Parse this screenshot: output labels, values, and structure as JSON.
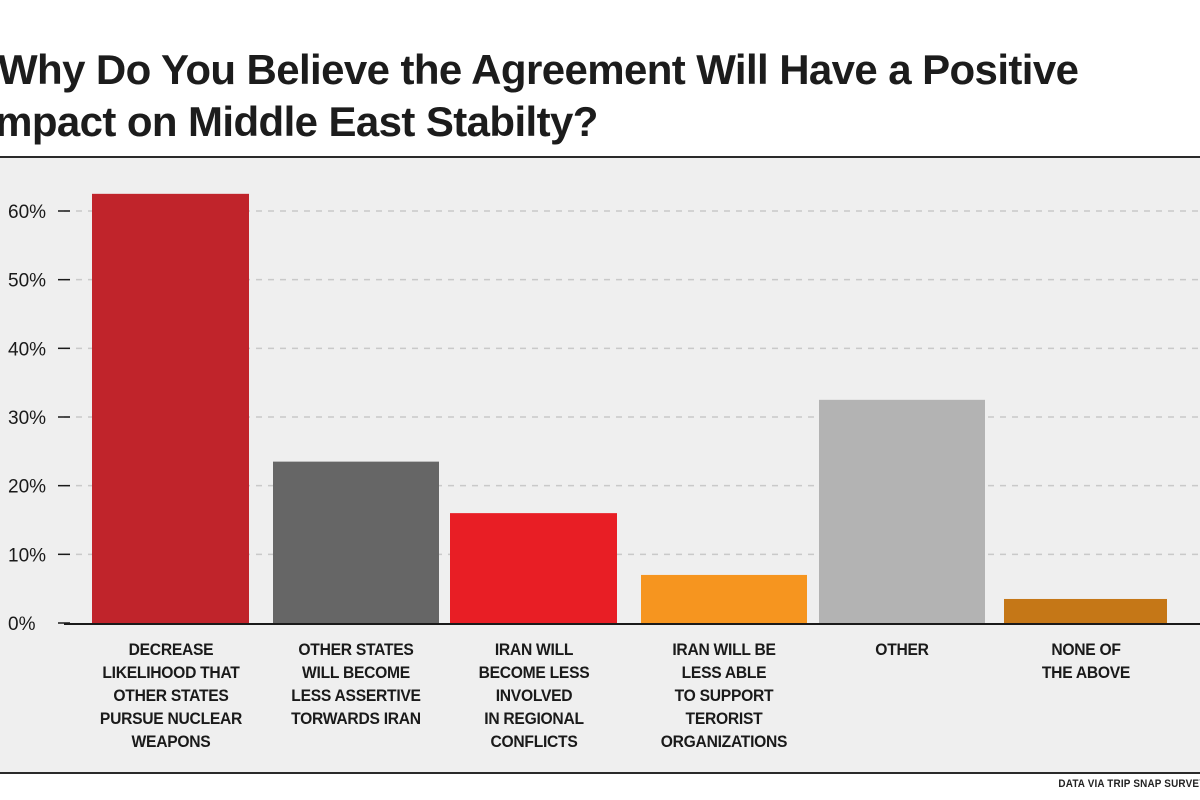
{
  "chart_data": {
    "type": "bar",
    "title_lines": [
      "Why Do You Believe the Agreement Will Have a Positive",
      "Impact on Middle East Stabilty?"
    ],
    "categories": [
      "DECREASE\nLIKELIHOOD THAT\nOTHER STATES\nPURSUE NUCLEAR\nWEAPONS",
      "OTHER STATES\nWILL BECOME\nLESS ASSERTIVE\nTORWARDS IRAN",
      "IRAN WILL\nBECOME LESS\nINVOLVED\nIN REGIONAL\nCONFLICTS",
      "IRAN WILL BE\nLESS ABLE\nTO SUPPORT\nTERORIST\nORGANIZATIONS",
      "OTHER",
      "NONE OF\nTHE ABOVE"
    ],
    "values": [
      62.5,
      23.5,
      16,
      7,
      32.5,
      3.5
    ],
    "colors": [
      "#c0242b",
      "#666666",
      "#e81e25",
      "#f6951f",
      "#b3b3b3",
      "#c57717"
    ],
    "yticks": [
      0,
      10,
      20,
      30,
      40,
      50,
      60
    ],
    "ytick_labels": [
      "0%",
      "10%",
      "20%",
      "30%",
      "40%",
      "50%",
      "60%"
    ],
    "ylim": [
      0,
      60
    ],
    "xlabel": "",
    "ylabel": "",
    "grid": true,
    "source": "DATA VIA TRIP SNAP SURVEY"
  }
}
